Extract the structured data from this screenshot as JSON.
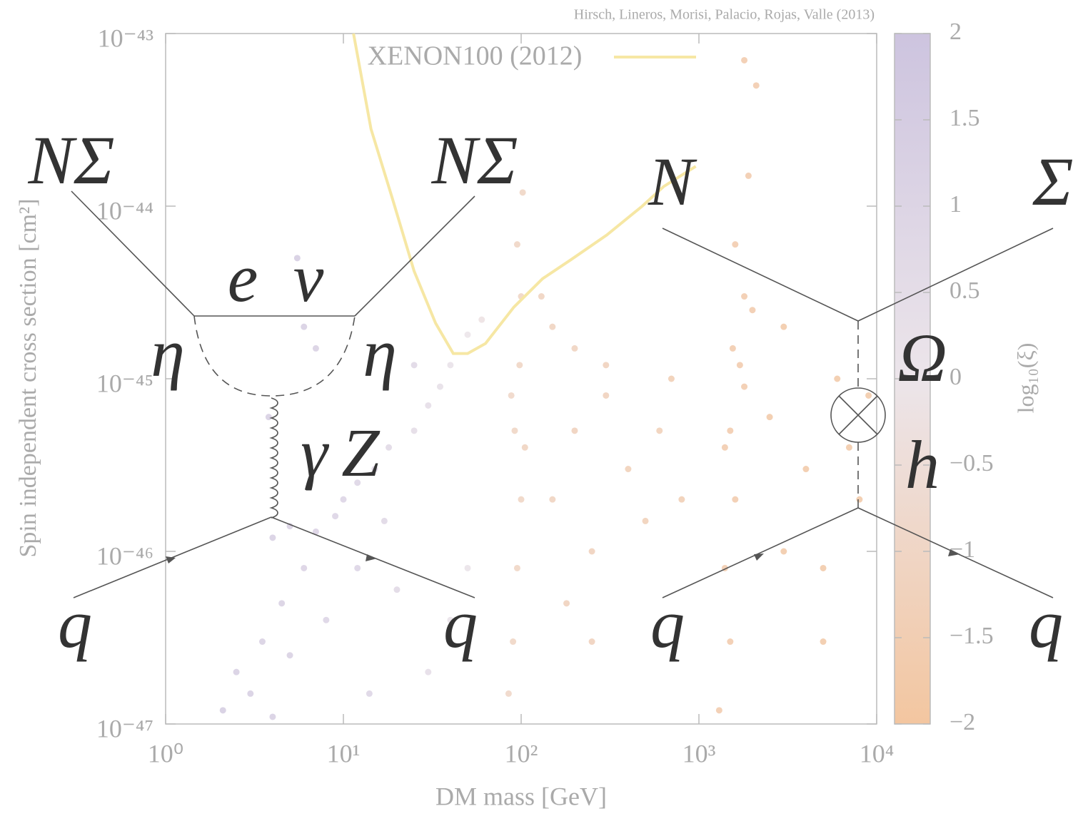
{
  "chart_data": {
    "type": "scatter",
    "credit": "Hirsch, Lineros, Morisi, Palacio, Rojas, Valle (2013)",
    "x_label": "DM mass [GeV]",
    "y_label": "Spin independent cross section [cm²]",
    "xscale": "log",
    "yscale": "log",
    "xlim": [
      1,
      10000
    ],
    "ylim": [
      1e-47,
      1e-43
    ],
    "xticks": [
      {
        "value": 1,
        "label": "10⁰"
      },
      {
        "value": 10,
        "label": "10¹"
      },
      {
        "value": 100,
        "label": "10²"
      },
      {
        "value": 1000,
        "label": "10³"
      },
      {
        "value": 10000,
        "label": "10⁴"
      }
    ],
    "yticks": [
      {
        "value": 1e-47,
        "label": "10⁻⁴⁷"
      },
      {
        "value": 1e-46,
        "label": "10⁻⁴⁶"
      },
      {
        "value": 1e-45,
        "label": "10⁻⁴⁵"
      },
      {
        "value": 1e-44,
        "label": "10⁻⁴⁴"
      },
      {
        "value": 1e-43,
        "label": "10⁻⁴³"
      }
    ],
    "colorbar": {
      "label": "log₁₀(ξ)",
      "lim": [
        -2,
        2
      ],
      "ticks": [
        {
          "value": -2,
          "label": "−2"
        },
        {
          "value": -1.5,
          "label": "−1.5"
        },
        {
          "value": -1,
          "label": "−1"
        },
        {
          "value": -0.5,
          "label": "−0.5"
        },
        0,
        0.5,
        1,
        1.5,
        2
      ],
      "colors": [
        "#f3c6a0",
        "#ece5ea",
        "#cdc4df"
      ]
    },
    "series": [
      {
        "name": "XENON100 (2012)",
        "type": "line",
        "color": "#f6e7a4",
        "x": [
          11.4,
          14.3,
          18.9,
          25,
          33,
          41.5,
          50,
          63,
          91,
          132,
          191,
          303,
          480,
          634,
          960
        ],
        "y": [
          1e-43,
          2.8e-44,
          1.1e-44,
          4.2e-45,
          2.1e-45,
          1.4e-45,
          1.4e-45,
          1.6e-45,
          2.6e-45,
          3.8e-45,
          4.9e-45,
          6.8e-45,
          1e-44,
          1.3e-44,
          1.7e-44
        ]
      }
    ],
    "points": {
      "x": [
        2.1,
        2.5,
        3,
        3.5,
        4,
        4.5,
        5,
        6,
        7,
        8,
        9,
        10,
        12,
        14,
        15,
        18,
        20,
        4,
        5,
        6,
        5.5,
        7,
        3.8,
        25,
        30,
        35,
        40,
        25,
        30,
        40,
        50,
        60,
        50,
        12,
        17,
        85,
        90,
        95,
        100,
        92,
        98,
        100,
        95,
        102,
        88,
        105,
        150,
        200,
        250,
        300,
        400,
        500,
        150,
        200,
        300,
        600,
        800,
        180,
        250,
        130,
        700,
        1300,
        1500,
        1400,
        1600,
        1500,
        1700,
        1800,
        1600,
        1900,
        1400,
        1800,
        1550,
        2000,
        2100,
        1800,
        3000,
        4000,
        5000,
        6000,
        7000,
        8000,
        3000,
        5000,
        2500,
        9000
      ],
      "y": [
        1.2e-47,
        2e-47,
        1.5e-47,
        3e-47,
        1.1e-47,
        5e-47,
        2.5e-47,
        8e-47,
        1.3e-46,
        4e-47,
        1.6e-46,
        2e-46,
        2.5e-46,
        1.5e-47,
        3e-46,
        4e-46,
        6e-47,
        1.2e-46,
        1.4e-46,
        2e-45,
        5e-45,
        1.5e-45,
        6e-46,
        5e-46,
        7e-46,
        9e-46,
        1.2e-45,
        1.2e-45,
        2e-47,
        4e-47,
        1.8e-45,
        2.2e-45,
        8e-47,
        8e-47,
        1.5e-46,
        1.5e-47,
        3e-47,
        8e-47,
        2e-46,
        5e-46,
        1.2e-45,
        3e-45,
        6e-45,
        1.2e-44,
        8e-46,
        4e-46,
        2e-46,
        5e-46,
        1e-46,
        8e-46,
        3e-46,
        1.5e-46,
        2e-45,
        1.5e-45,
        1.2e-45,
        5e-46,
        2e-46,
        5e-47,
        3e-47,
        3e-45,
        1e-45,
        1.2e-47,
        3e-47,
        8e-47,
        2e-46,
        5e-46,
        1.2e-45,
        3e-45,
        6e-45,
        1.5e-44,
        4e-46,
        9e-46,
        1.5e-45,
        2.5e-45,
        5e-44,
        7e-44,
        1e-46,
        3e-46,
        8e-47,
        1e-45,
        4e-46,
        2e-46,
        2e-45,
        3e-47,
        6e-46,
        8e-46
      ],
      "c": [
        1.4,
        1.3,
        1.3,
        1.2,
        1.3,
        1.2,
        1.2,
        1.1,
        1.1,
        1,
        1,
        1,
        0.9,
        0.9,
        0.8,
        0.7,
        0.7,
        1.3,
        1.2,
        1.3,
        1.4,
        1.2,
        1.3,
        0.5,
        0.4,
        0.3,
        0.2,
        0.8,
        0.4,
        0.2,
        0,
        -0.2,
        0.1,
        1,
        0.8,
        -0.9,
        -1,
        -1,
        -1,
        -1,
        -1,
        -1,
        -1,
        -1,
        -0.9,
        -1.1,
        -1.1,
        -1.2,
        -1.2,
        -1.2,
        -1.3,
        -1.3,
        -1.1,
        -1.1,
        -1.2,
        -1.3,
        -1.4,
        -1.2,
        -1.2,
        -1.1,
        -1.4,
        -1.6,
        -1.6,
        -1.6,
        -1.6,
        -1.6,
        -1.6,
        -1.6,
        -1.6,
        -1.6,
        -1.6,
        -1.6,
        -1.6,
        -1.6,
        -1.6,
        -1.6,
        -1.7,
        -1.7,
        -1.7,
        -1.7,
        -1.7,
        -1.7,
        -1.7,
        -1.7,
        -1.7,
        -1.7
      ]
    }
  },
  "diagrams": {
    "left": {
      "top_left": "NΣ",
      "top_right": "NΣ",
      "loop_left": "e",
      "loop_right": "ν",
      "eta_left": "η",
      "eta_right": "η",
      "boson_gamma": "γ",
      "boson_z": "Z",
      "quark_in": "q",
      "quark_out": "q"
    },
    "right": {
      "top_left": "N",
      "top_right": "Σ",
      "omega": "Ω",
      "higgs": "h",
      "quark_in": "q",
      "quark_out": "q"
    }
  }
}
